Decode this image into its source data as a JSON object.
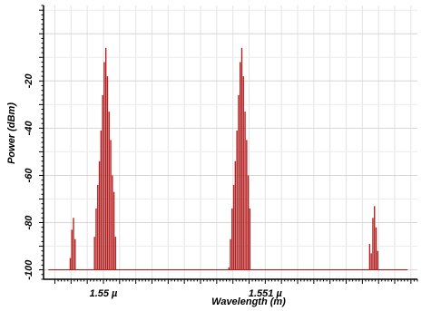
{
  "chart_data": {
    "type": "bar",
    "title": "",
    "xlabel": "Wavelength (m)",
    "ylabel": "Power (dBm)",
    "x_tick_labels": [
      "1.55 µ",
      "1.551 µ"
    ],
    "x_tick_values": [
      1.55,
      1.551
    ],
    "y_tick_labels": [
      "-20",
      "-40",
      "-60",
      "-80",
      "-100"
    ],
    "y_tick_values": [
      -20,
      -40,
      -60,
      -80,
      -100
    ],
    "x_unit": "µm",
    "xlim": [
      1.54963,
      1.55194
    ],
    "ylim": [
      -104,
      12
    ],
    "noise_floor": -100,
    "grid": true,
    "series_color": "#b22222",
    "groups": [
      {
        "x": [
          1.549795,
          1.549805,
          1.549815,
          1.549825
        ],
        "values": [
          -95,
          -83,
          -78,
          -87
        ]
      },
      {
        "x": [
          1.549945,
          1.549955,
          1.549965,
          1.549975,
          1.549985,
          1.549995,
          1.550005,
          1.550015,
          1.550025,
          1.550035,
          1.550045,
          1.550055,
          1.550065,
          1.550075
        ],
        "values": [
          -86,
          -74,
          -64,
          -54,
          -41,
          -26,
          -12,
          -6,
          -18,
          -33,
          -45,
          -60,
          -67,
          -86
        ]
      },
      {
        "x": [
          1.550775,
          1.550785,
          1.550795,
          1.550805,
          1.550815,
          1.550825,
          1.550835,
          1.550845,
          1.550855,
          1.550865,
          1.550875,
          1.550885,
          1.550895,
          1.550905
        ],
        "values": [
          -99,
          -87,
          -74,
          -64,
          -54,
          -41,
          -26,
          -12,
          -6,
          -18,
          -33,
          -45,
          -60,
          -74
        ]
      },
      {
        "x": [
          1.551645,
          1.551655,
          1.551665,
          1.551675,
          1.551685,
          1.551695
        ],
        "values": [
          -89,
          -93,
          -78,
          -73,
          -82,
          -92
        ]
      }
    ]
  }
}
